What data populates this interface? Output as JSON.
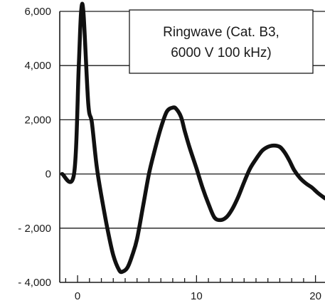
{
  "chart_data": {
    "type": "line",
    "title_lines": [
      "Ringwave (Cat. B3,",
      "6000 V 100 kHz)"
    ],
    "xlabel": "",
    "ylabel": "",
    "xlim": [
      -1.5,
      20.8
    ],
    "ylim": [
      -4000,
      6000
    ],
    "x_ticks": [
      0,
      10,
      20
    ],
    "x_minor_tick_step": 1,
    "y_ticks": [
      -4000,
      -2000,
      0,
      2000,
      4000,
      6000
    ],
    "y_tick_labels": [
      "- 4,000",
      "- 2,000",
      "0",
      "2,000",
      "4,000",
      "6,000"
    ],
    "grid": "horizontal",
    "series": [
      {
        "color": "#111111",
        "x": [
          -1.3,
          -0.3,
          0.1,
          0.3,
          0.5,
          0.9,
          1.2,
          1.6,
          2.0,
          2.5,
          3.0,
          3.5,
          3.8,
          4.2,
          4.6,
          5.0,
          5.5,
          6.0,
          6.5,
          7.0,
          7.5,
          8.0,
          8.3,
          8.7,
          9.0,
          9.4,
          10.0,
          10.5,
          11.0,
          11.5,
          12.0,
          12.5,
          13.0,
          13.5,
          14.0,
          14.5,
          15.0,
          15.5,
          16.0,
          16.5,
          17.0,
          17.4,
          17.8,
          18.2,
          18.7,
          19.2,
          19.7,
          20.2,
          20.8
        ],
        "y": [
          0,
          0,
          4000,
          6000,
          5900,
          2600,
          1900,
          300,
          -800,
          -2000,
          -3000,
          -3550,
          -3600,
          -3450,
          -3000,
          -2400,
          -1200,
          0,
          900,
          1700,
          2300,
          2450,
          2400,
          2100,
          1600,
          1000,
          200,
          -500,
          -1100,
          -1600,
          -1700,
          -1600,
          -1300,
          -850,
          -300,
          200,
          550,
          850,
          1000,
          1050,
          1000,
          800,
          500,
          150,
          -150,
          -350,
          -500,
          -700,
          -900
        ]
      }
    ]
  }
}
